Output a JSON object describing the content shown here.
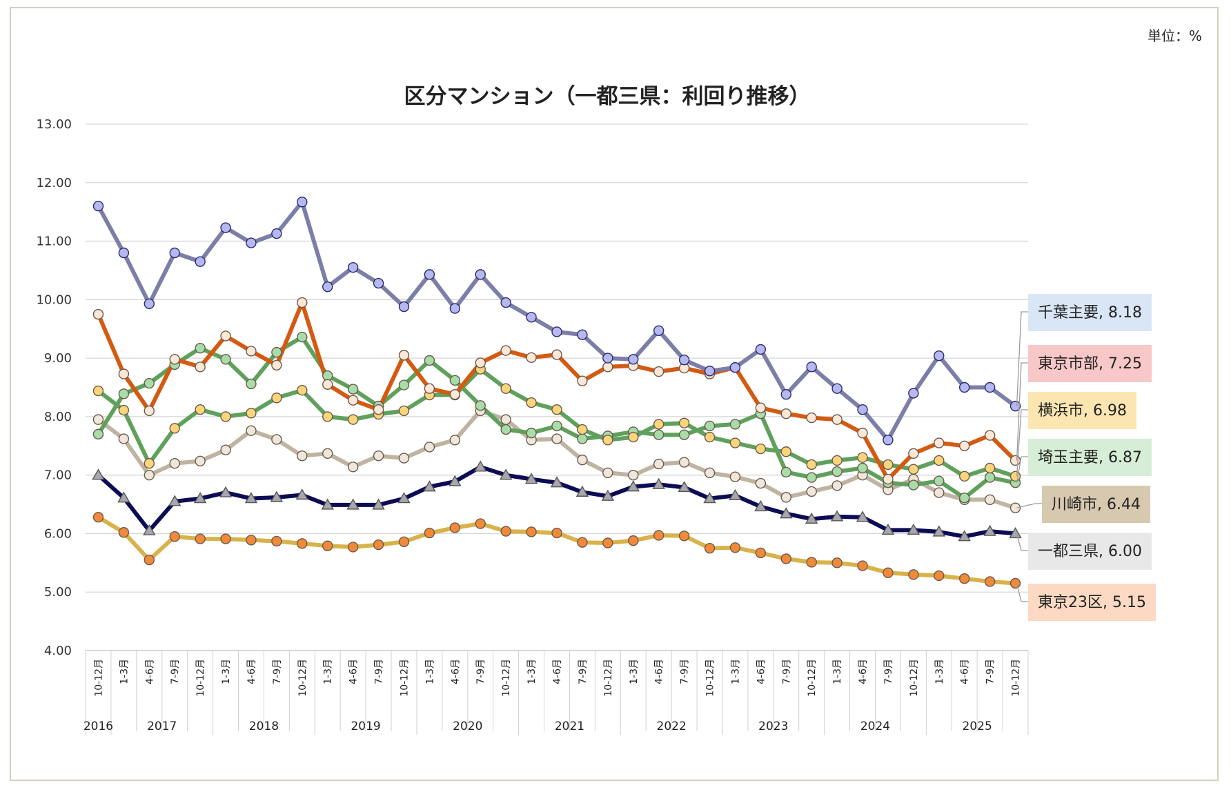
{
  "unit_label": "単位：%",
  "chart_data": {
    "type": "line",
    "title": "区分マンション（一都三県：利回り推移）",
    "ylim": [
      4.0,
      13.0
    ],
    "yticks": [
      "13.00",
      "12.00",
      "11.00",
      "10.00",
      "9.00",
      "8.00",
      "7.00",
      "6.00",
      "5.00",
      "4.00"
    ],
    "quarters": [
      "10-12月",
      "1-3月",
      "4-6月",
      "7-9月",
      "10-12月",
      "1-3月",
      "4-6月",
      "7-9月",
      "10-12月",
      "1-3月",
      "4-6月",
      "7-9月",
      "10-12月",
      "1-3月",
      "4-6月",
      "7-9月",
      "10-12月",
      "1-3月",
      "4-6月",
      "7-9月",
      "10-12月",
      "1-3月",
      "4-6月",
      "7-9月",
      "10-12月",
      "1-3月",
      "4-6月",
      "7-9月",
      "10-12月",
      "1-3月",
      "4-6月",
      "7-9月",
      "10-12月",
      "1-3月",
      "4-6月",
      "7-9月",
      "10-12月"
    ],
    "years": [
      {
        "label": "2016",
        "start": 0,
        "end": 0
      },
      {
        "label": "2017",
        "start": 1,
        "end": 4
      },
      {
        "label": "2018",
        "start": 5,
        "end": 8
      },
      {
        "label": "2019",
        "start": 9,
        "end": 12
      },
      {
        "label": "2020",
        "start": 13,
        "end": 16
      },
      {
        "label": "2021",
        "start": 17,
        "end": 20
      },
      {
        "label": "2022",
        "start": 21,
        "end": 24
      },
      {
        "label": "2023",
        "start": 25,
        "end": 28
      },
      {
        "label": "2024",
        "start": 29,
        "end": 32
      },
      {
        "label": "2025",
        "start": 33,
        "end": 36
      }
    ],
    "series": [
      {
        "name": "千葉主要",
        "label": "千葉主要, 8.18",
        "line": "#7b7fa8",
        "marker": "#b7b8f0",
        "box": "#d9e6f5",
        "shape": "circle",
        "values": [
          11.6,
          10.8,
          9.93,
          10.8,
          10.65,
          11.23,
          10.97,
          11.13,
          11.67,
          10.22,
          10.55,
          10.28,
          9.88,
          10.43,
          9.85,
          10.43,
          9.95,
          9.7,
          9.45,
          9.4,
          9.0,
          8.98,
          9.47,
          8.97,
          8.78,
          8.84,
          9.15,
          8.38,
          8.85,
          8.48,
          8.12,
          7.6,
          8.4,
          9.04,
          8.5,
          8.5,
          8.18
        ]
      },
      {
        "name": "東京市部",
        "label": "東京市部, 7.25",
        "line": "#d45a12",
        "marker": "#fde7d6",
        "box": "#f8c8c8",
        "shape": "circle",
        "values": [
          9.75,
          8.73,
          8.1,
          8.98,
          8.85,
          9.38,
          9.12,
          8.88,
          9.95,
          8.55,
          8.28,
          8.12,
          9.05,
          8.48,
          8.38,
          8.92,
          9.13,
          9.01,
          9.06,
          8.61,
          8.85,
          8.87,
          8.77,
          8.83,
          8.73,
          8.84,
          8.15,
          8.05,
          7.98,
          7.95,
          7.72,
          6.93,
          7.37,
          7.55,
          7.5,
          7.68,
          7.25
        ]
      },
      {
        "name": "横浜市",
        "label": "横浜市, 6.98",
        "line": "#5fa15c",
        "marker": "#fbd57c",
        "box": "#fbe6b2",
        "shape": "circle",
        "values": [
          8.44,
          8.11,
          7.2,
          7.8,
          8.12,
          8.0,
          8.06,
          8.32,
          8.45,
          8.0,
          7.95,
          8.04,
          8.1,
          8.37,
          8.37,
          8.81,
          8.48,
          8.24,
          8.12,
          7.78,
          7.6,
          7.65,
          7.87,
          7.89,
          7.65,
          7.55,
          7.45,
          7.4,
          7.18,
          7.25,
          7.3,
          7.18,
          7.1,
          7.25,
          6.98,
          7.12,
          6.98
        ]
      },
      {
        "name": "埼玉主要",
        "label": "埼玉主要, 6.87",
        "line": "#5fa15c",
        "marker": "#a8ddaa",
        "box": "#d5eed5",
        "shape": "circle",
        "values": [
          7.7,
          8.39,
          8.57,
          8.89,
          9.17,
          8.98,
          8.56,
          9.1,
          9.36,
          8.7,
          8.47,
          8.18,
          8.54,
          8.96,
          8.62,
          8.19,
          7.78,
          7.72,
          7.84,
          7.62,
          7.67,
          7.74,
          7.69,
          7.69,
          7.84,
          7.87,
          8.05,
          7.05,
          6.96,
          7.06,
          7.12,
          6.87,
          6.83,
          6.9,
          6.61,
          6.96,
          6.87
        ]
      },
      {
        "name": "川崎市",
        "label": "川崎市, 6.44",
        "line": "#bfb3a1",
        "marker": "#efe7dc",
        "box": "#d7c8b0",
        "shape": "circle",
        "values": [
          7.95,
          7.62,
          7.0,
          7.2,
          7.24,
          7.43,
          7.76,
          7.61,
          7.33,
          7.37,
          7.14,
          7.33,
          7.29,
          7.48,
          7.6,
          8.1,
          7.95,
          7.6,
          7.62,
          7.26,
          7.04,
          7.0,
          7.19,
          7.22,
          7.04,
          6.97,
          6.86,
          6.62,
          6.72,
          6.82,
          7.0,
          6.75,
          6.93,
          6.7,
          6.58,
          6.58,
          6.44
        ]
      },
      {
        "name": "一都三県",
        "label": "一都三県, 6.00",
        "line": "#0c0c55",
        "marker": "#a7a7ad",
        "box": "#e8e8e8",
        "shape": "triangle",
        "values": [
          7.0,
          6.61,
          6.05,
          6.55,
          6.6,
          6.7,
          6.6,
          6.62,
          6.66,
          6.49,
          6.49,
          6.49,
          6.6,
          6.8,
          6.89,
          7.14,
          7.0,
          6.93,
          6.87,
          6.71,
          6.64,
          6.8,
          6.84,
          6.79,
          6.6,
          6.65,
          6.46,
          6.34,
          6.25,
          6.29,
          6.28,
          6.06,
          6.06,
          6.03,
          5.95,
          6.04,
          6.0
        ]
      },
      {
        "name": "東京23区",
        "label": "東京23区, 5.15",
        "line": "#d8b24a",
        "marker": "#f08a3a",
        "box": "#fbd9c3",
        "shape": "circle",
        "values": [
          6.28,
          6.02,
          5.55,
          5.95,
          5.91,
          5.91,
          5.89,
          5.87,
          5.83,
          5.79,
          5.77,
          5.81,
          5.86,
          6.01,
          6.1,
          6.17,
          6.04,
          6.03,
          6.01,
          5.85,
          5.84,
          5.88,
          5.97,
          5.96,
          5.75,
          5.76,
          5.67,
          5.57,
          5.51,
          5.5,
          5.45,
          5.33,
          5.3,
          5.28,
          5.23,
          5.18,
          5.15
        ]
      }
    ]
  }
}
